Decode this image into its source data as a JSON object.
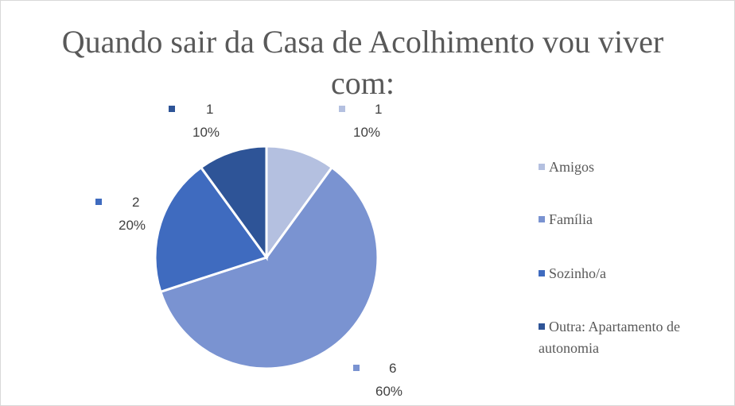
{
  "chart_data": {
    "type": "pie",
    "title": "Quando sair da Casa de Acolhimento vou viver com:",
    "categories": [
      "Amigos",
      "Família",
      "Sozinho/a",
      "Outra: Apartamento de autonomia"
    ],
    "values": [
      1,
      6,
      2,
      1
    ],
    "percent_labels": [
      "10%",
      "60%",
      "20%",
      "10%"
    ],
    "colors": [
      "#b4c0e0",
      "#7a93d1",
      "#3f6bbf",
      "#2e5497"
    ],
    "legend": "right"
  }
}
